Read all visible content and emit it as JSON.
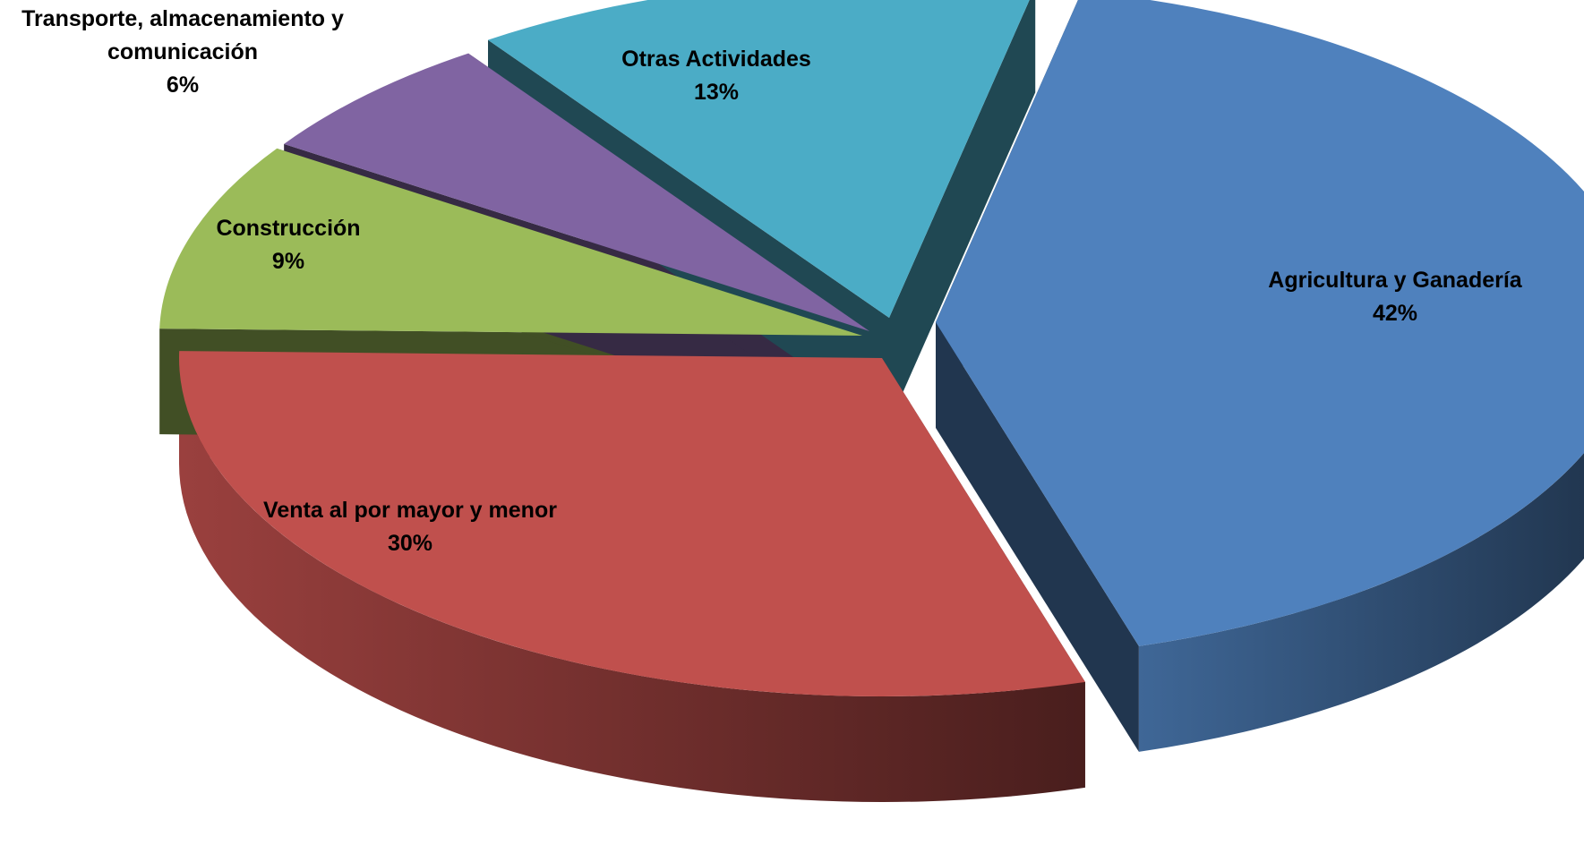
{
  "chart_data": {
    "type": "pie",
    "style": "3d-exploded",
    "title": "",
    "slices": [
      {
        "name": "Agricultura y Ganadería",
        "value": 42,
        "label": "42%",
        "color": "#4F81BD"
      },
      {
        "name": "Venta al por mayor y menor",
        "value": 30,
        "label": "30%",
        "color": "#C0504D"
      },
      {
        "name": "Construcción",
        "value": 9,
        "label": "9%",
        "color": "#9BBB59"
      },
      {
        "name": "Transporte, almacenamiento y comunicación",
        "value": 6,
        "label": "6%",
        "color": "#8064A2"
      },
      {
        "name": "Otras Actividades",
        "value": 13,
        "label": "13%",
        "color": "#4BACC6"
      }
    ]
  }
}
